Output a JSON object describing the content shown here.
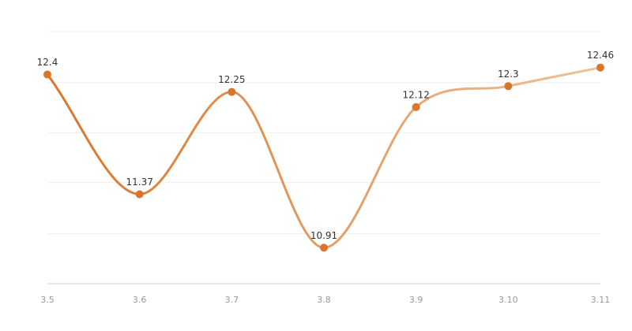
{
  "chart_data": {
    "type": "line",
    "categories": [
      "3.5",
      "3.6",
      "3.7",
      "3.8",
      "3.9",
      "3.10",
      "3.11"
    ],
    "series": [
      {
        "color": "#d9762b",
        "gradient_end": "#ecc29b",
        "values": [
          12.4,
          11.37,
          12.25,
          10.91,
          12.12,
          12.3,
          12.46
        ]
      }
    ],
    "ylim": [
      10.6,
      12.77
    ],
    "yticks": [
      10.6,
      11.03,
      11.47,
      11.9,
      12.33,
      12.77
    ],
    "grid": true,
    "smooth": true
  }
}
